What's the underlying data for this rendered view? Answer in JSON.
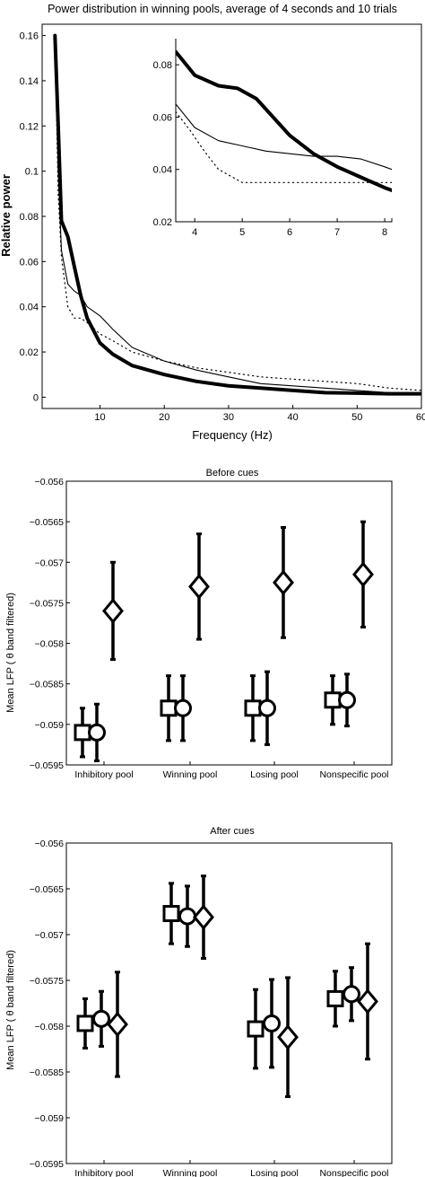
{
  "chart_data": [
    {
      "type": "line",
      "title": "Power distribution in winning pools, average of 4 seconds and 10 trials",
      "xlabel": "Frequency (Hz)",
      "ylabel": "Relative power",
      "xlim": [
        1,
        60
      ],
      "ylim": [
        -0.005,
        0.165
      ],
      "xticks": [
        10,
        20,
        30,
        40,
        50,
        60
      ],
      "yticks": [
        0,
        0.02,
        0.04,
        0.06,
        0.08,
        0.1,
        0.12,
        0.14,
        0.16
      ],
      "grid": false,
      "series": [
        {
          "style": "thick",
          "x": [
            3,
            3.5,
            4,
            5,
            6,
            7,
            8,
            10,
            12,
            15,
            20,
            25,
            30,
            35,
            40,
            45,
            50,
            55,
            60
          ],
          "y": [
            0.16,
            0.12,
            0.078,
            0.071,
            0.058,
            0.045,
            0.035,
            0.024,
            0.019,
            0.014,
            0.01,
            0.007,
            0.005,
            0.004,
            0.003,
            0.002,
            0.0018,
            0.0015,
            0.0015
          ]
        },
        {
          "style": "thin",
          "x": [
            3,
            3.5,
            4,
            5,
            6,
            7,
            8,
            10,
            12,
            15,
            20,
            25,
            30,
            35,
            40,
            45,
            50,
            55,
            60
          ],
          "y": [
            0.16,
            0.1,
            0.065,
            0.05,
            0.047,
            0.045,
            0.04,
            0.036,
            0.03,
            0.022,
            0.016,
            0.012,
            0.009,
            0.006,
            0.005,
            0.004,
            0.003,
            0.002,
            0.002
          ]
        },
        {
          "style": "dotted",
          "x": [
            3,
            3.5,
            4,
            5,
            6,
            7,
            8,
            10,
            12,
            15,
            20,
            25,
            30,
            35,
            40,
            45,
            50,
            55,
            60
          ],
          "y": [
            0.16,
            0.09,
            0.062,
            0.04,
            0.035,
            0.035,
            0.033,
            0.028,
            0.025,
            0.02,
            0.016,
            0.013,
            0.011,
            0.009,
            0.008,
            0.007,
            0.006,
            0.004,
            0.003
          ]
        }
      ],
      "inset": {
        "xlim": [
          3.6,
          8.15
        ],
        "ylim": [
          0.02,
          0.09
        ],
        "xticks": [
          4,
          5,
          6,
          7,
          8
        ],
        "yticks": [
          0.02,
          0.04,
          0.06,
          0.08
        ],
        "series": [
          {
            "style": "thick",
            "x": [
              3.6,
              4,
              4.5,
              4.9,
              5.3,
              6,
              6.5,
              7,
              7.5,
              8,
              8.15
            ],
            "y": [
              0.085,
              0.076,
              0.072,
              0.071,
              0.067,
              0.053,
              0.046,
              0.041,
              0.037,
              0.033,
              0.032
            ]
          },
          {
            "style": "thin",
            "x": [
              3.6,
              4,
              4.5,
              5,
              5.5,
              6,
              6.5,
              7,
              7.5,
              8,
              8.15
            ],
            "y": [
              0.065,
              0.056,
              0.051,
              0.049,
              0.047,
              0.046,
              0.045,
              0.045,
              0.044,
              0.041,
              0.04
            ]
          },
          {
            "style": "dotted",
            "x": [
              3.6,
              3.9,
              4.2,
              4.5,
              5,
              5.5,
              6,
              7,
              8,
              8.15
            ],
            "y": [
              0.062,
              0.055,
              0.047,
              0.04,
              0.035,
              0.035,
              0.035,
              0.035,
              0.035,
              0.035
            ]
          }
        ]
      }
    },
    {
      "type": "errorbar",
      "title": "Before cues",
      "ylabel": "Mean LFP (    θ band filtered)",
      "ylim": [
        -0.0595,
        -0.056
      ],
      "yticks": [
        "−0.056",
        "−0.0565",
        "−0.057",
        "−0.0575",
        "−0.058",
        "−0.0585",
        "−0.059",
        "−0.0595"
      ],
      "ytick_values": [
        -0.056,
        -0.0565,
        -0.057,
        -0.0575,
        -0.058,
        -0.0585,
        -0.059,
        -0.0595
      ],
      "categories": [
        "Inhibitory pool",
        "Winning pool",
        "Losing pool",
        "Nonspecific pool"
      ],
      "series": [
        {
          "marker": "square",
          "values": [
            -0.0591,
            -0.0588,
            -0.0588,
            -0.0587
          ],
          "err": [
            0.0003,
            0.0004,
            0.0004,
            0.0003
          ]
        },
        {
          "marker": "circle",
          "values": [
            -0.0591,
            -0.0588,
            -0.0588,
            -0.0587
          ],
          "err": [
            0.00035,
            0.0004,
            0.00045,
            0.00032
          ]
        },
        {
          "marker": "diamond",
          "values": [
            -0.0576,
            -0.0573,
            -0.05725,
            -0.05715
          ],
          "err": [
            0.0006,
            0.00065,
            0.00068,
            0.00065
          ]
        }
      ]
    },
    {
      "type": "errorbar",
      "title": "After cues",
      "ylabel": "Mean LFP (    θ band filtered)",
      "ylim": [
        -0.0595,
        -0.056
      ],
      "yticks": [
        "−0.056",
        "−0.0565",
        "−0.057",
        "−0.0575",
        "−0.058",
        "−0.0585",
        "−0.059",
        "−0.0595"
      ],
      "ytick_values": [
        -0.056,
        -0.0565,
        -0.057,
        -0.0575,
        -0.058,
        -0.0585,
        -0.059,
        -0.0595
      ],
      "categories": [
        "Inhibitory pool",
        "Winning pool",
        "Losing pool",
        "Nonspecific pool"
      ],
      "series": [
        {
          "marker": "square",
          "values": [
            -0.05797,
            -0.05677,
            -0.05803,
            -0.0577
          ],
          "err": [
            0.00027,
            0.00033,
            0.00043,
            0.0003
          ]
        },
        {
          "marker": "circle",
          "values": [
            -0.05792,
            -0.0568,
            -0.05797,
            -0.05765
          ],
          "err": [
            0.0003,
            0.00033,
            0.00048,
            0.00029
          ]
        },
        {
          "marker": "diamond",
          "values": [
            -0.05798,
            -0.05681,
            -0.05812,
            -0.05773
          ],
          "err": [
            0.00057,
            0.00045,
            0.00065,
            0.00063
          ]
        }
      ]
    }
  ]
}
